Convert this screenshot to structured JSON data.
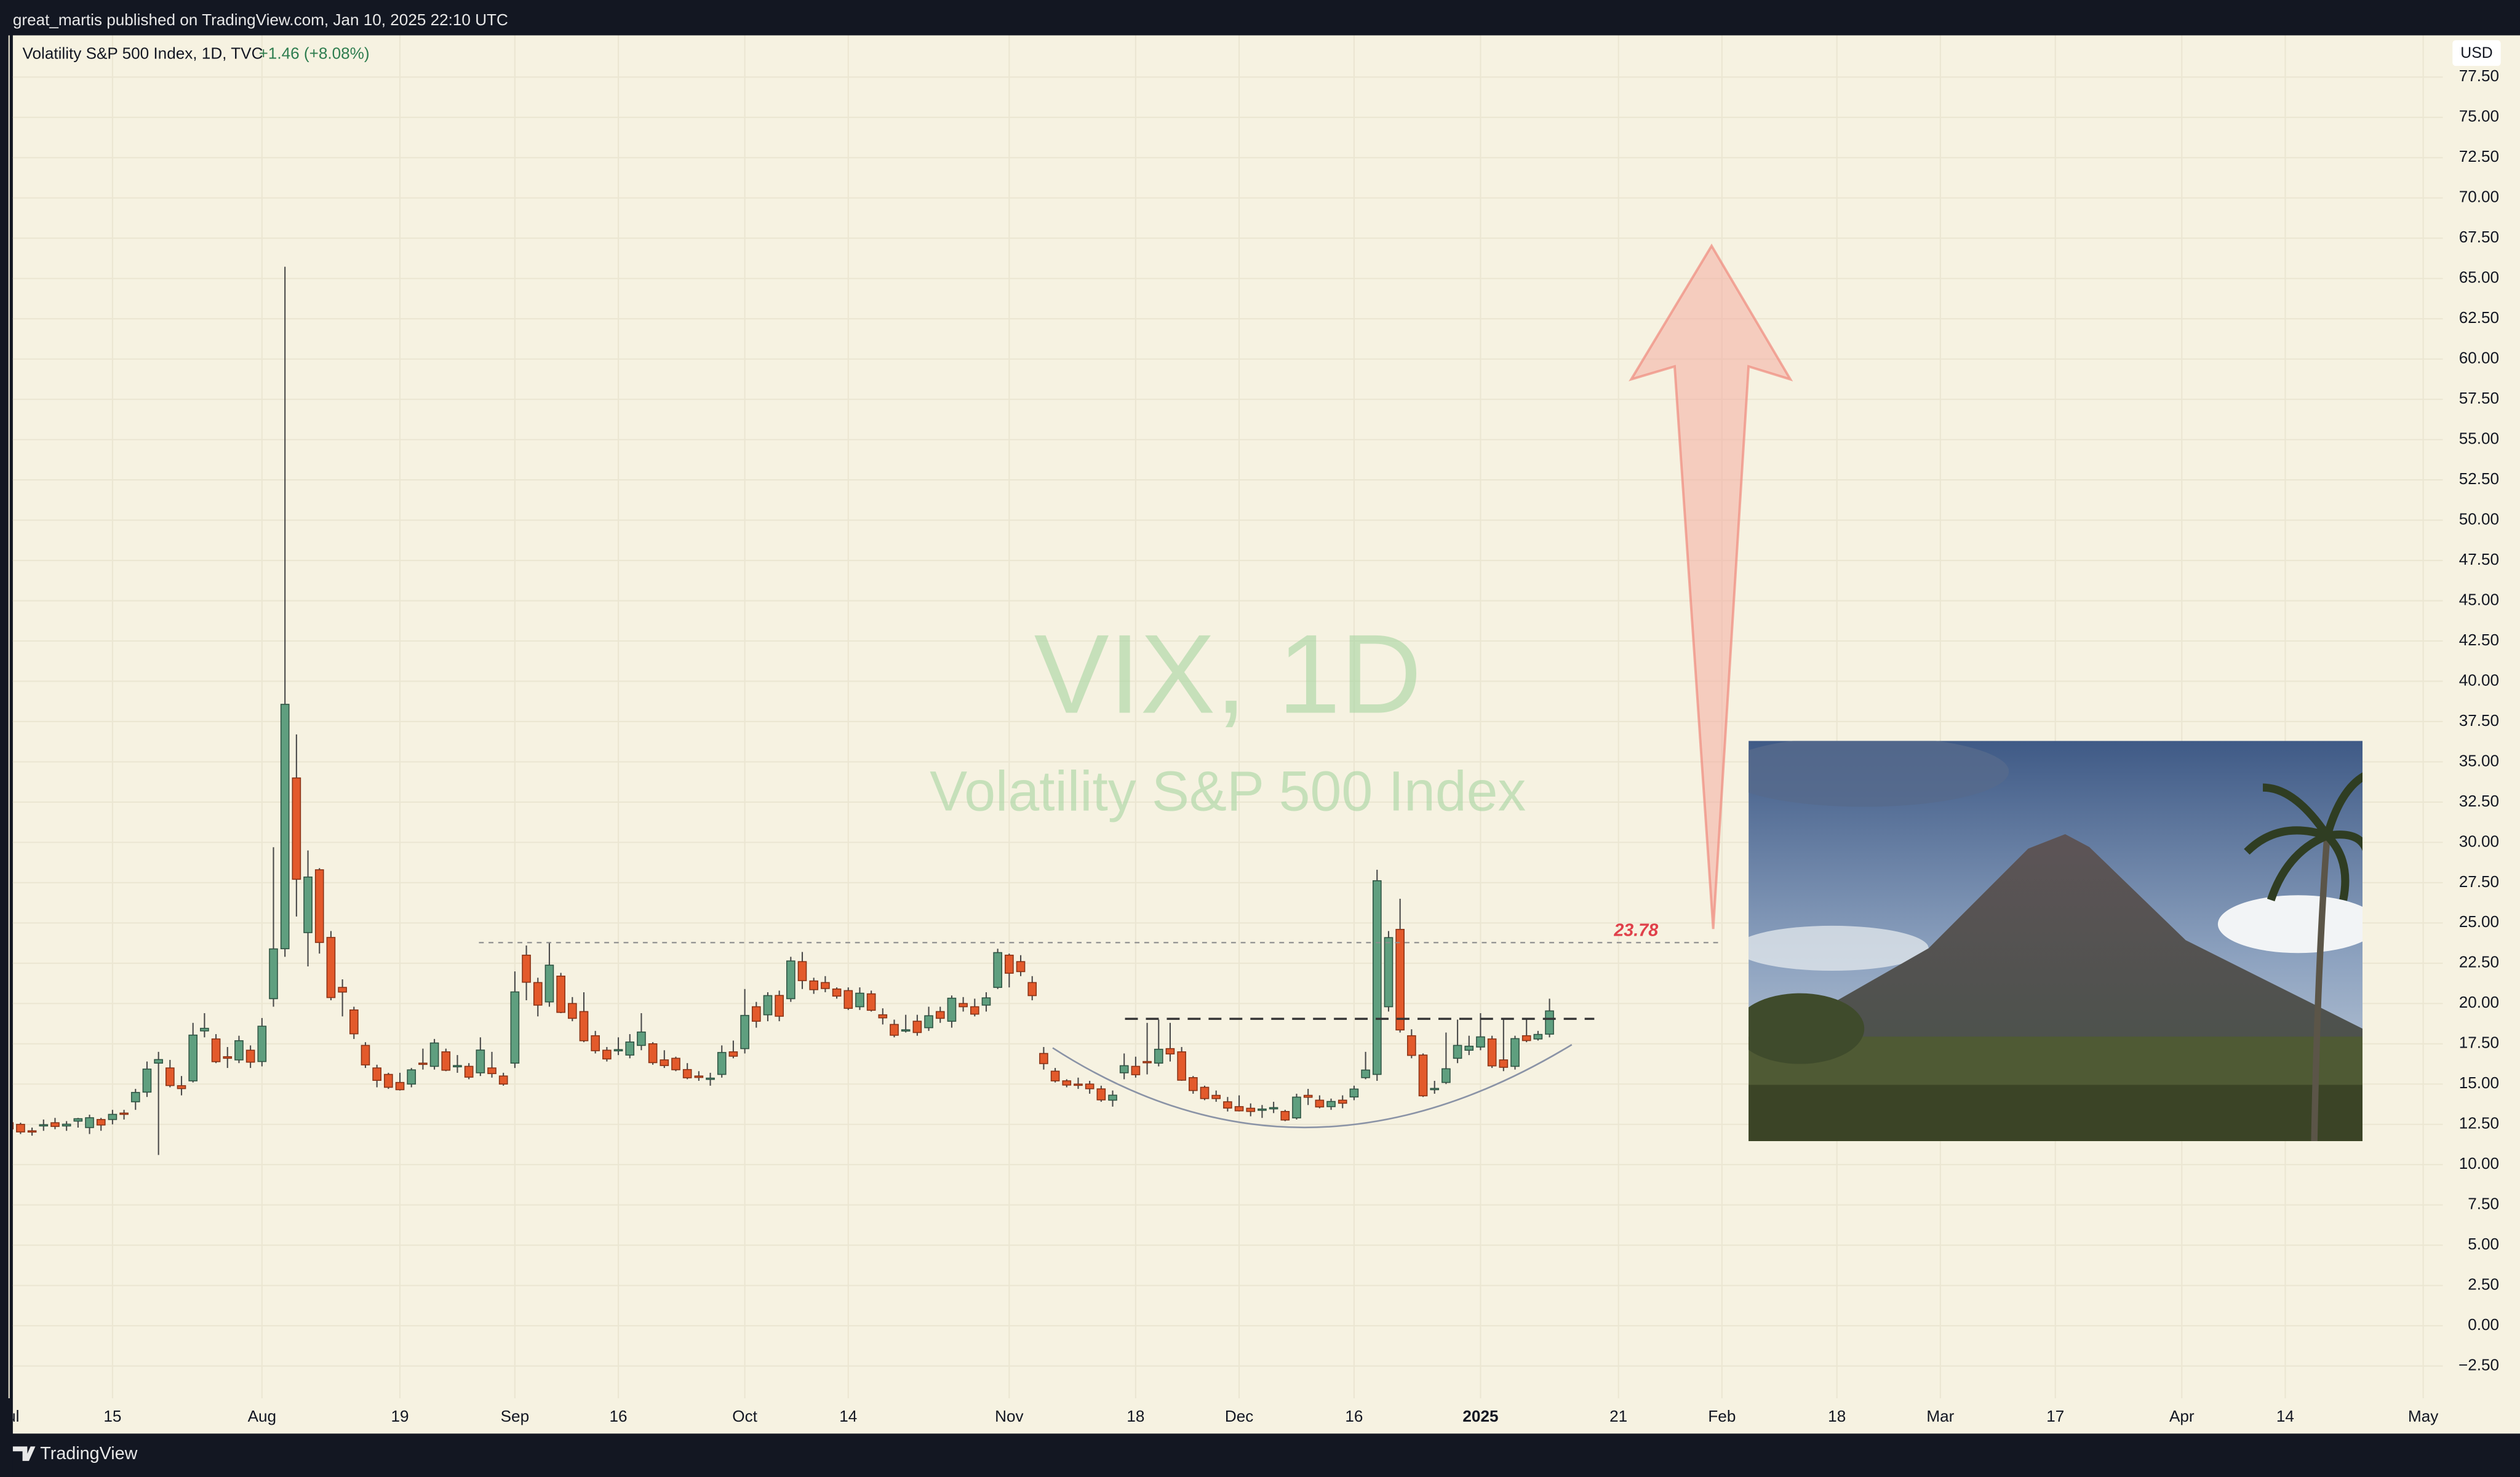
{
  "header": {
    "published": "great_martis published on TradingView.com, Jan 10, 2025 22:10 UTC"
  },
  "footer": {
    "brand": "TradingView"
  },
  "chart_data": {
    "type": "candlestick",
    "title": "Volatility S&P 500 Index, 1D, TVC",
    "change": "+1.46 (+8.08%)",
    "currency": "USD",
    "watermark": {
      "symbol": "VIX, 1D",
      "name": "Volatility S&P 500 Index"
    },
    "up_color": "#5f9f7f",
    "down_color": "#e35a2b",
    "grid": true,
    "open": [
      12.6,
      12.5,
      12.1,
      12.4,
      12.6,
      12.4,
      12.7,
      12.3,
      12.8,
      12.8,
      13.2,
      13.9,
      14.5,
      16.3,
      16.0,
      14.9,
      15.2,
      18.3,
      17.8,
      16.7,
      16.5,
      17.1,
      16.4,
      20.3,
      23.4,
      34.0,
      24.4,
      28.3,
      24.1,
      21.0,
      19.6,
      17.4,
      16.0,
      15.6,
      15.1,
      15.0,
      16.3,
      16.1,
      17.0,
      16.1,
      16.1,
      15.7,
      16.0,
      15.5,
      16.3,
      23.0,
      21.3,
      20.1,
      21.7,
      20.0,
      19.5,
      18.0,
      17.1,
      17.1,
      16.8,
      17.4,
      17.5,
      16.5,
      16.6,
      15.9,
      15.5,
      15.3,
      15.6,
      17.0,
      17.2,
      19.8,
      19.3,
      20.5,
      20.3,
      22.6,
      21.4,
      21.3,
      20.9,
      20.8,
      19.8,
      20.6,
      19.3,
      18.7,
      18.3,
      18.9,
      18.5,
      19.5,
      18.9,
      20.0,
      19.8,
      19.9,
      21.0,
      23.0,
      22.6,
      21.3,
      16.9,
      15.8,
      15.2,
      15.0,
      15.0,
      14.7,
      14.0,
      15.7,
      16.1,
      16.4,
      16.3,
      17.2,
      17.0,
      15.4,
      14.8,
      14.3,
      13.9,
      13.6,
      13.5,
      13.4,
      13.5,
      13.3,
      12.9,
      14.3,
      14.0,
      13.6,
      14.0,
      14.2,
      15.4,
      15.6,
      19.8,
      24.6,
      18.0,
      16.8,
      14.7,
      15.1,
      16.6,
      17.1,
      17.3,
      17.8,
      16.5,
      16.1,
      18.0,
      17.8,
      18.1
    ],
    "high": [
      13.0,
      12.6,
      12.3,
      12.8,
      12.9,
      12.7,
      12.9,
      13.1,
      12.9,
      13.4,
      13.4,
      14.7,
      16.4,
      17.0,
      16.5,
      15.5,
      18.8,
      19.4,
      18.1,
      17.3,
      18.0,
      17.4,
      19.1,
      29.7,
      65.73,
      36.7,
      29.5,
      28.4,
      24.5,
      21.5,
      19.8,
      17.6,
      16.2,
      15.7,
      15.7,
      16.0,
      17.2,
      17.8,
      17.2,
      16.8,
      16.3,
      17.9,
      17.0,
      15.7,
      21.99,
      23.6,
      21.6,
      23.8,
      21.9,
      20.4,
      20.7,
      18.3,
      17.3,
      17.9,
      18.1,
      19.4,
      17.6,
      17.1,
      16.7,
      16.3,
      15.8,
      15.7,
      17.4,
      17.7,
      20.9,
      20.1,
      20.7,
      20.8,
      22.9,
      23.2,
      21.6,
      21.7,
      21.0,
      21.0,
      21.0,
      20.8,
      19.7,
      19.0,
      19.3,
      19.3,
      19.8,
      19.8,
      20.5,
      20.4,
      20.3,
      20.7,
      23.4,
      23.1,
      23.0,
      21.7,
      17.3,
      16.0,
      15.3,
      15.4,
      15.2,
      14.9,
      14.6,
      16.9,
      16.7,
      18.8,
      19.0,
      18.8,
      17.3,
      15.5,
      14.9,
      14.6,
      14.2,
      14.3,
      13.8,
      13.7,
      13.9,
      13.4,
      14.4,
      14.7,
      14.3,
      14.1,
      14.3,
      14.9,
      17.0,
      28.3,
      24.5,
      26.5,
      18.4,
      16.9,
      15.2,
      18.2,
      19.0,
      18.0,
      19.4,
      18.0,
      19.0,
      18.0,
      19.1,
      18.3,
      20.3
    ],
    "low": [
      12.1,
      11.9,
      11.8,
      12.1,
      12.2,
      12.1,
      12.3,
      11.9,
      12.1,
      12.5,
      12.8,
      13.4,
      14.2,
      10.6,
      14.8,
      14.3,
      15.1,
      17.9,
      16.3,
      16.0,
      16.3,
      16.0,
      16.1,
      19.8,
      22.9,
      25.4,
      22.3,
      23.1,
      20.2,
      19.2,
      17.8,
      16.0,
      14.8,
      14.7,
      14.6,
      14.8,
      15.9,
      15.9,
      15.8,
      15.7,
      15.3,
      15.5,
      15.4,
      14.9,
      16.0,
      20.2,
      19.2,
      19.8,
      19.4,
      18.9,
      17.6,
      16.9,
      16.4,
      16.8,
      16.6,
      17.1,
      16.2,
      16.0,
      15.8,
      15.3,
      15.2,
      14.9,
      15.4,
      16.6,
      16.9,
      18.5,
      18.9,
      18.9,
      20.1,
      20.9,
      20.6,
      20.7,
      20.3,
      19.6,
      19.6,
      19.5,
      18.7,
      17.9,
      18.2,
      18.0,
      18.3,
      18.8,
      18.5,
      19.5,
      19.2,
      19.5,
      20.9,
      21.0,
      21.7,
      20.2,
      15.9,
      15.1,
      14.8,
      14.7,
      14.4,
      13.9,
      13.6,
      15.3,
      15.4,
      15.6,
      16.1,
      16.4,
      15.2,
      14.4,
      14.0,
      13.9,
      13.3,
      13.3,
      13.0,
      12.9,
      13.2,
      12.7,
      12.8,
      13.7,
      13.5,
      13.4,
      13.5,
      14.0,
      15.3,
      15.2,
      19.5,
      18.2,
      16.6,
      14.2,
      14.4,
      15.0,
      16.3,
      16.8,
      17.1,
      16.0,
      15.8,
      15.9,
      17.6,
      17.7,
      17.9
    ],
    "close": [
      12.22,
      12.03,
      12.09,
      12.48,
      12.37,
      12.51,
      12.85,
      12.91,
      12.46,
      13.12,
      13.19,
      14.48,
      15.93,
      16.52,
      14.91,
      14.72,
      18.04,
      18.46,
      16.39,
      16.6,
      17.69,
      16.36,
      18.59,
      23.39,
      38.57,
      27.71,
      27.85,
      23.79,
      20.37,
      20.71,
      18.12,
      16.19,
      15.23,
      14.8,
      14.65,
      15.88,
      16.27,
      17.55,
      15.86,
      16.15,
      15.43,
      17.11,
      15.65,
      15.0,
      20.72,
      21.32,
      19.9,
      22.38,
      19.45,
      19.08,
      17.69,
      17.07,
      16.56,
      17.14,
      17.61,
      18.23,
      16.33,
      16.15,
      15.89,
      15.39,
      15.41,
      15.37,
      16.96,
      16.73,
      19.26,
      18.9,
      20.49,
      19.21,
      22.64,
      21.42,
      20.86,
      20.93,
      20.46,
      19.7,
      20.64,
      19.58,
      19.11,
      18.03,
      18.37,
      18.2,
      19.24,
      19.08,
      20.33,
      19.8,
      19.34,
      20.35,
      23.16,
      21.88,
      21.98,
      20.49,
      16.27,
      15.2,
      14.94,
      14.97,
      14.71,
      14.02,
      14.31,
      16.14,
      15.58,
      16.35,
      17.16,
      16.87,
      15.24,
      14.6,
      14.1,
      14.1,
      13.51,
      13.34,
      13.3,
      13.45,
      13.54,
      12.77,
      14.19,
      14.18,
      13.58,
      13.92,
      13.81,
      14.69,
      15.87,
      27.62,
      24.09,
      18.36,
      16.78,
      14.27,
      14.73,
      15.95,
      17.4,
      17.35,
      17.93,
      16.13,
      16.04,
      17.82,
      17.7,
      18.08,
      19.54
    ],
    "xlim": [
      0.33,
      211.71
    ],
    "xticks": [
      {
        "value": 0,
        "label": "Jul"
      },
      {
        "value": 9,
        "label": "15"
      },
      {
        "value": 22,
        "label": "Aug"
      },
      {
        "value": 34,
        "label": "19"
      },
      {
        "value": 44,
        "label": "Sep"
      },
      {
        "value": 53,
        "label": "16"
      },
      {
        "value": 64,
        "label": "Oct"
      },
      {
        "value": 73,
        "label": "14"
      },
      {
        "value": 87,
        "label": "Nov"
      },
      {
        "value": 98,
        "label": "18"
      },
      {
        "value": 107,
        "label": "Dec"
      },
      {
        "value": 117,
        "label": "16"
      },
      {
        "value": 128,
        "label": "2025"
      },
      {
        "value": 140,
        "label": "21"
      },
      {
        "value": 149,
        "label": "Feb"
      },
      {
        "value": 159,
        "label": "18"
      },
      {
        "value": 168,
        "label": "Mar"
      },
      {
        "value": 178,
        "label": "17"
      },
      {
        "value": 189,
        "label": "Apr"
      },
      {
        "value": 198,
        "label": "14"
      },
      {
        "value": 210,
        "label": "May"
      }
    ],
    "ylim": [
      -4.5,
      80.09
    ],
    "yticks": [
      {
        "value": -2.5,
        "label": "−2.50"
      },
      {
        "value": 0,
        "label": "0.00"
      },
      {
        "value": 2.5,
        "label": "2.50"
      },
      {
        "value": 5,
        "label": "5.00"
      },
      {
        "value": 7.5,
        "label": "7.50"
      },
      {
        "value": 10,
        "label": "10.00"
      },
      {
        "value": 12.5,
        "label": "12.50"
      },
      {
        "value": 15,
        "label": "15.00"
      },
      {
        "value": 17.5,
        "label": "17.50"
      },
      {
        "value": 20,
        "label": "20.00"
      },
      {
        "value": 22.5,
        "label": "22.50"
      },
      {
        "value": 25,
        "label": "25.00"
      },
      {
        "value": 27.5,
        "label": "27.50"
      },
      {
        "value": 30,
        "label": "30.00"
      },
      {
        "value": 32.5,
        "label": "32.50"
      },
      {
        "value": 35,
        "label": "35.00"
      },
      {
        "value": 37.5,
        "label": "37.50"
      },
      {
        "value": 40,
        "label": "40.00"
      },
      {
        "value": 42.5,
        "label": "42.50"
      },
      {
        "value": 45,
        "label": "45.00"
      },
      {
        "value": 47.5,
        "label": "47.50"
      },
      {
        "value": 50,
        "label": "50.00"
      },
      {
        "value": 52.5,
        "label": "52.50"
      },
      {
        "value": 55,
        "label": "55.00"
      },
      {
        "value": 57.5,
        "label": "57.50"
      },
      {
        "value": 60,
        "label": "60.00"
      },
      {
        "value": 62.5,
        "label": "62.50"
      },
      {
        "value": 65,
        "label": "65.00"
      },
      {
        "value": 67.5,
        "label": "67.50"
      },
      {
        "value": 70,
        "label": "70.00"
      },
      {
        "value": 72.5,
        "label": "72.50"
      },
      {
        "value": 75,
        "label": "75.00"
      },
      {
        "value": 77.5,
        "label": "77.50"
      }
    ],
    "levels": [
      {
        "value": 23.78,
        "label": "23.78",
        "color": "#e0404a"
      },
      {
        "value": 19.05
      }
    ]
  }
}
